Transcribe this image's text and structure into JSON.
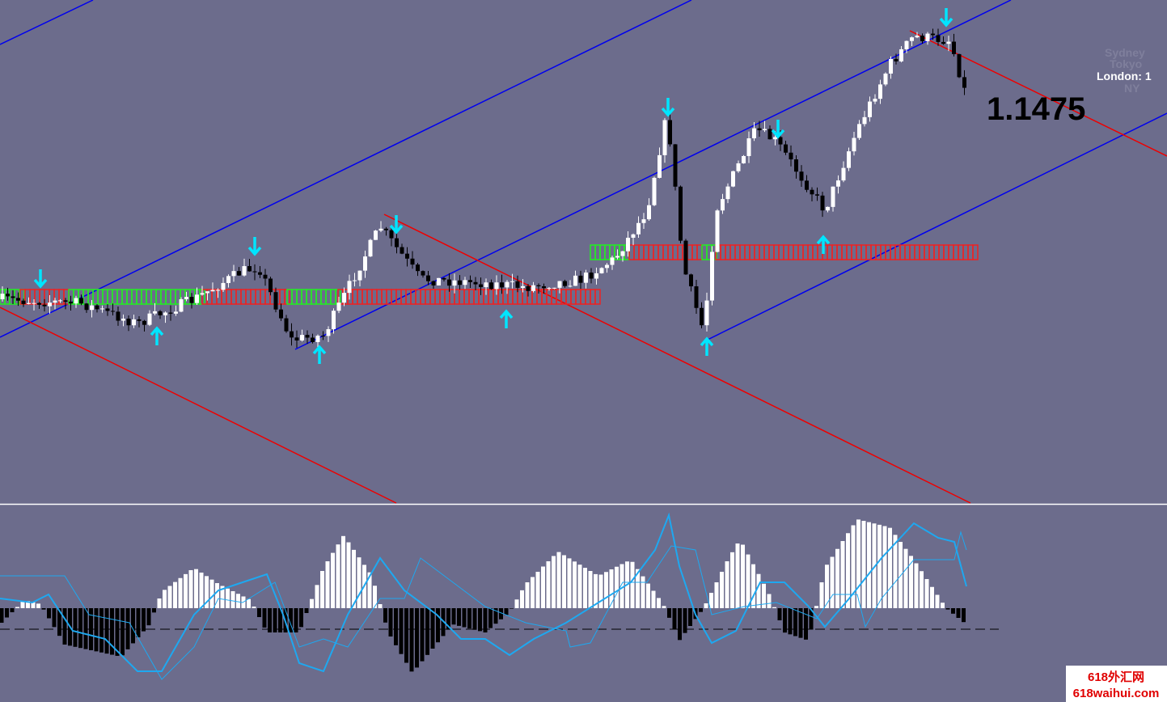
{
  "sessions": {
    "sydney": "Sydney",
    "tokyo": "Tokyo",
    "london": "London:  1",
    "newyork": "NY"
  },
  "price": "1.1475",
  "watermark": {
    "name": "618外汇网",
    "url": "618waihui.com"
  }
}
